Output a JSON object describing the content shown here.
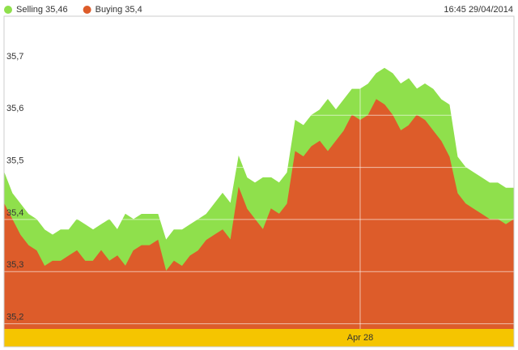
{
  "chart_data": {
    "type": "area",
    "timestamp": "16:45 29/04/2014",
    "categories": [
      null,
      null,
      null,
      null,
      null,
      null,
      null,
      null,
      null,
      null,
      null,
      null,
      null,
      null,
      null,
      null,
      null,
      null,
      null,
      null,
      null,
      null,
      null,
      null,
      null,
      null,
      null,
      null,
      null,
      null,
      null,
      null,
      null,
      null,
      null,
      null,
      null,
      null,
      null,
      null,
      null,
      null,
      null,
      null,
      "Apr 28",
      null,
      null,
      null,
      null,
      null,
      null,
      null,
      null,
      null,
      null,
      null,
      null,
      null,
      null,
      null,
      null,
      null,
      null,
      null
    ],
    "series": [
      {
        "name": "Selling 35,46",
        "color": "#8fe04c",
        "values": [
          35.49,
          35.45,
          35.43,
          35.41,
          35.4,
          35.38,
          35.37,
          35.38,
          35.38,
          35.4,
          35.39,
          35.38,
          35.39,
          35.4,
          35.38,
          35.41,
          35.4,
          35.41,
          35.41,
          35.41,
          35.36,
          35.38,
          35.38,
          35.39,
          35.4,
          35.41,
          35.43,
          35.45,
          35.43,
          35.52,
          35.48,
          35.47,
          35.48,
          35.48,
          35.47,
          35.49,
          35.59,
          35.58,
          35.6,
          35.61,
          35.63,
          35.61,
          35.63,
          35.65,
          35.65,
          35.66,
          35.68,
          35.69,
          35.68,
          35.66,
          35.67,
          35.65,
          35.66,
          35.65,
          35.63,
          35.62,
          35.52,
          35.5,
          35.49,
          35.48,
          35.47,
          35.47,
          35.46,
          35.46
        ]
      },
      {
        "name": "Buying 35,4",
        "color": "#dd5c2a",
        "values": [
          35.43,
          35.4,
          35.37,
          35.35,
          35.34,
          35.31,
          35.32,
          35.32,
          35.33,
          35.34,
          35.32,
          35.32,
          35.34,
          35.32,
          35.33,
          35.31,
          35.34,
          35.35,
          35.35,
          35.36,
          35.3,
          35.32,
          35.31,
          35.33,
          35.34,
          35.36,
          35.37,
          35.38,
          35.36,
          35.46,
          35.42,
          35.4,
          35.38,
          35.42,
          35.41,
          35.43,
          35.53,
          35.52,
          35.54,
          35.55,
          35.53,
          35.55,
          35.57,
          35.6,
          35.59,
          35.6,
          35.63,
          35.62,
          35.6,
          35.57,
          35.58,
          35.6,
          35.59,
          35.57,
          35.55,
          35.52,
          35.45,
          35.43,
          35.42,
          35.41,
          35.4,
          35.4,
          35.39,
          35.4
        ]
      }
    ],
    "ylim": [
      35.19,
      35.79
    ],
    "yticks": [
      {
        "value": 35.2,
        "label": "35,2"
      },
      {
        "value": 35.3,
        "label": "35,3"
      },
      {
        "value": 35.4,
        "label": "35,4"
      },
      {
        "value": 35.5,
        "label": "35,5"
      },
      {
        "value": 35.6,
        "label": "35,6"
      },
      {
        "value": 35.7,
        "label": "35,7"
      }
    ],
    "grid": true
  }
}
